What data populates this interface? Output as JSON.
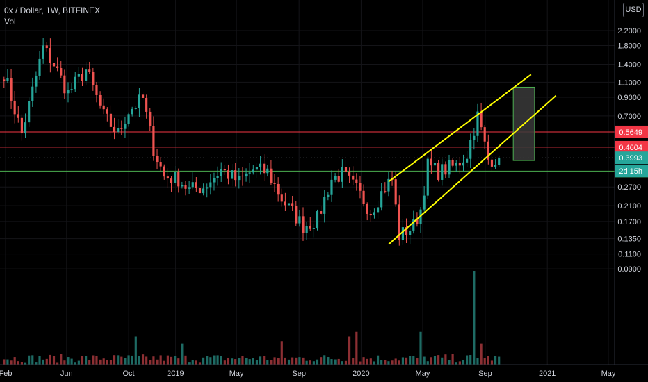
{
  "header": {
    "symbol_line": "0x / Dollar, 1W, BITFINEX",
    "indicator": "Vol",
    "currency_button": "USD"
  },
  "chart_data": {
    "type": "candlestick",
    "title": "0x / Dollar, 1W, BITFINEX",
    "y_scale": "log",
    "y_axis_range": [
      0.078,
      2.8
    ],
    "y_tick_labels": [
      "2.2000",
      "1.8000",
      "1.4000",
      "1.1000",
      "0.9000",
      "0.7000",
      "0.2700",
      "0.2100",
      "0.1700",
      "0.1350",
      "0.1100",
      "0.0900"
    ],
    "y_ticks": [
      2.2,
      1.8,
      1.4,
      1.1,
      0.9,
      0.7,
      0.27,
      0.21,
      0.17,
      0.135,
      0.11,
      0.09
    ],
    "x_tick_labels": [
      "Feb",
      "Jun",
      "Oct",
      "2019",
      "May",
      "Sep",
      "2020",
      "May",
      "Sep",
      "2021",
      "May"
    ],
    "x_ticks": [
      "2018-02",
      "2018-06",
      "2018-10",
      "2019-01",
      "2019-05",
      "2019-09",
      "2020-01",
      "2020-05",
      "2020-09",
      "2021-01",
      "2021-05"
    ],
    "horizontal_levels": [
      {
        "label": "0.5649",
        "value": 0.5649,
        "color": "#f23645"
      },
      {
        "label": "0.4604",
        "value": 0.4604,
        "color": "#f23645"
      },
      {
        "label": "0.3341",
        "value": 0.3341,
        "color": "#4caf50"
      }
    ],
    "current_price": {
      "label": "0.3993",
      "value": 0.3993,
      "color": "#26a69a"
    },
    "countdown": {
      "label": "2d 15h",
      "color": "#26a69a"
    },
    "channel_lines": {
      "color": "#ffff00",
      "upper": [
        [
          "2020-02-24",
          0.29
        ],
        [
          "2020-11-30",
          1.22
        ]
      ],
      "lower": [
        [
          "2020-02-24",
          0.125
        ],
        [
          "2021-01-18",
          0.92
        ]
      ]
    },
    "target_box": {
      "from": "2020-10-26",
      "to": "2020-12-07",
      "top": 1.03,
      "bottom": 0.385,
      "border": "#4caf50",
      "fill": "#3a3a3a"
    },
    "anchors": [
      [
        "2018-01-29",
        1.25
      ],
      [
        "2018-03-05",
        0.55
      ],
      [
        "2018-04-16",
        1.75
      ],
      [
        "2018-05-07",
        1.4
      ],
      [
        "2018-06-04",
        0.95
      ],
      [
        "2018-07-09",
        1.3
      ],
      [
        "2018-08-13",
        0.7
      ],
      [
        "2018-09-10",
        0.55
      ],
      [
        "2018-10-01",
        0.75
      ],
      [
        "2018-10-29",
        0.88
      ],
      [
        "2018-11-19",
        0.45
      ],
      [
        "2018-12-10",
        0.31
      ],
      [
        "2019-01-07",
        0.3
      ],
      [
        "2019-01-28",
        0.26
      ],
      [
        "2019-02-25",
        0.27
      ],
      [
        "2019-04-01",
        0.34
      ],
      [
        "2019-05-06",
        0.29
      ],
      [
        "2019-06-03",
        0.34
      ],
      [
        "2019-07-01",
        0.33
      ],
      [
        "2019-07-29",
        0.23
      ],
      [
        "2019-09-09",
        0.16
      ],
      [
        "2019-10-07",
        0.175
      ],
      [
        "2019-11-04",
        0.3
      ],
      [
        "2019-11-25",
        0.32
      ],
      [
        "2019-12-23",
        0.26
      ],
      [
        "2020-01-20",
        0.195
      ],
      [
        "2020-02-17",
        0.27
      ],
      [
        "2020-03-02",
        0.3
      ],
      [
        "2020-03-16",
        0.14
      ],
      [
        "2020-04-13",
        0.16
      ],
      [
        "2020-04-27",
        0.2
      ],
      [
        "2020-05-11",
        0.36
      ],
      [
        "2020-06-01",
        0.33
      ],
      [
        "2020-07-06",
        0.36
      ],
      [
        "2020-07-27",
        0.42
      ],
      [
        "2020-08-17",
        0.7
      ],
      [
        "2020-09-07",
        0.39
      ],
      [
        "2020-09-28",
        0.3993
      ]
    ],
    "volume_scale_max": 40,
    "volume_bursts": [
      [
        "2018-10-15",
        12
      ],
      [
        "2019-01-14",
        9
      ],
      [
        "2019-07-29",
        10
      ],
      [
        "2019-12-09",
        12
      ],
      [
        "2019-12-23",
        14
      ],
      [
        "2020-04-27",
        14
      ],
      [
        "2020-08-10",
        40
      ],
      [
        "2020-08-24",
        9
      ]
    ]
  }
}
